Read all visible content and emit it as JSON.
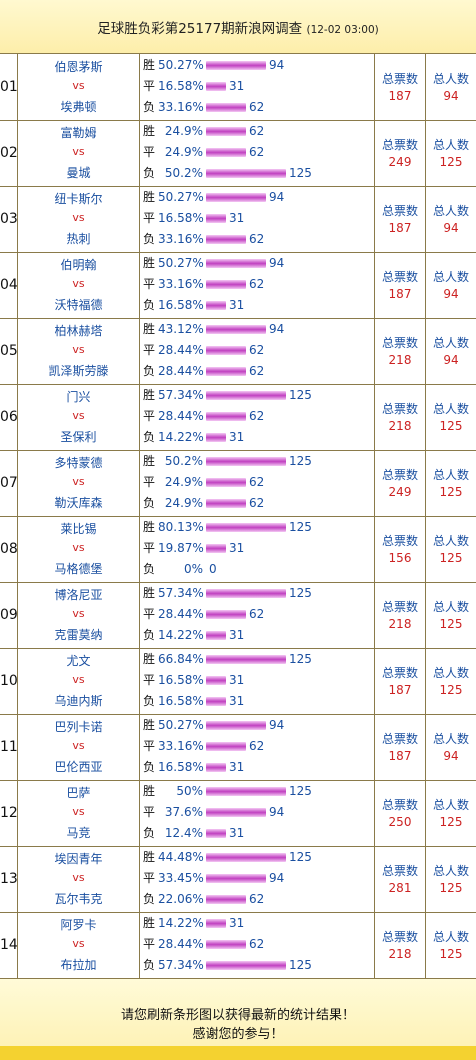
{
  "header": {
    "title": "足球胜负彩第25177期新浪网调查",
    "date": "(12-02 03:00)"
  },
  "labels": {
    "win": "胜",
    "draw": "平",
    "lose": "负",
    "vs": "vs",
    "total_votes": "总票数",
    "total_people": "总人数"
  },
  "matches": [
    {
      "num": "01",
      "home": "伯恩茅斯",
      "away": "埃弗顿",
      "win_pct": "50.27%",
      "win": 94,
      "draw_pct": "16.58%",
      "draw": 31,
      "lose_pct": "33.16%",
      "lose": 62,
      "total_votes": "187",
      "total_people": "94"
    },
    {
      "num": "02",
      "home": "富勒姆",
      "away": "曼城",
      "win_pct": "24.9%",
      "win": 62,
      "draw_pct": "24.9%",
      "draw": 62,
      "lose_pct": "50.2%",
      "lose": 125,
      "total_votes": "249",
      "total_people": "125"
    },
    {
      "num": "03",
      "home": "纽卡斯尔",
      "away": "热刺",
      "win_pct": "50.27%",
      "win": 94,
      "draw_pct": "16.58%",
      "draw": 31,
      "lose_pct": "33.16%",
      "lose": 62,
      "total_votes": "187",
      "total_people": "94"
    },
    {
      "num": "04",
      "home": "伯明翰",
      "away": "沃特福德",
      "win_pct": "50.27%",
      "win": 94,
      "draw_pct": "33.16%",
      "draw": 62,
      "lose_pct": "16.58%",
      "lose": 31,
      "total_votes": "187",
      "total_people": "94"
    },
    {
      "num": "05",
      "home": "柏林赫塔",
      "away": "凯泽斯劳滕",
      "win_pct": "43.12%",
      "win": 94,
      "draw_pct": "28.44%",
      "draw": 62,
      "lose_pct": "28.44%",
      "lose": 62,
      "total_votes": "218",
      "total_people": "94"
    },
    {
      "num": "06",
      "home": "门兴",
      "away": "圣保利",
      "win_pct": "57.34%",
      "win": 125,
      "draw_pct": "28.44%",
      "draw": 62,
      "lose_pct": "14.22%",
      "lose": 31,
      "total_votes": "218",
      "total_people": "125"
    },
    {
      "num": "07",
      "home": "多特蒙德",
      "away": "勒沃库森",
      "win_pct": "50.2%",
      "win": 125,
      "draw_pct": "24.9%",
      "draw": 62,
      "lose_pct": "24.9%",
      "lose": 62,
      "total_votes": "249",
      "total_people": "125"
    },
    {
      "num": "08",
      "home": "莱比锡",
      "away": "马格德堡",
      "win_pct": "80.13%",
      "win": 125,
      "draw_pct": "19.87%",
      "draw": 31,
      "lose_pct": "0%",
      "lose": 0,
      "total_votes": "156",
      "total_people": "125"
    },
    {
      "num": "09",
      "home": "博洛尼亚",
      "away": "克雷莫纳",
      "win_pct": "57.34%",
      "win": 125,
      "draw_pct": "28.44%",
      "draw": 62,
      "lose_pct": "14.22%",
      "lose": 31,
      "total_votes": "218",
      "total_people": "125"
    },
    {
      "num": "10",
      "home": "尤文",
      "away": "乌迪内斯",
      "win_pct": "66.84%",
      "win": 125,
      "draw_pct": "16.58%",
      "draw": 31,
      "lose_pct": "16.58%",
      "lose": 31,
      "total_votes": "187",
      "total_people": "125"
    },
    {
      "num": "11",
      "home": "巴列卡诺",
      "away": "巴伦西亚",
      "win_pct": "50.27%",
      "win": 94,
      "draw_pct": "33.16%",
      "draw": 62,
      "lose_pct": "16.58%",
      "lose": 31,
      "total_votes": "187",
      "total_people": "94"
    },
    {
      "num": "12",
      "home": "巴萨",
      "away": "马竞",
      "win_pct": "50%",
      "win": 125,
      "draw_pct": "37.6%",
      "draw": 94,
      "lose_pct": "12.4%",
      "lose": 31,
      "total_votes": "250",
      "total_people": "125"
    },
    {
      "num": "13",
      "home": "埃因青年",
      "away": "瓦尔韦克",
      "win_pct": "44.48%",
      "win": 125,
      "draw_pct": "33.45%",
      "draw": 94,
      "lose_pct": "22.06%",
      "lose": 62,
      "total_votes": "281",
      "total_people": "125"
    },
    {
      "num": "14",
      "home": "阿罗卡",
      "away": "布拉加",
      "win_pct": "14.22%",
      "win": 31,
      "draw_pct": "28.44%",
      "draw": 62,
      "lose_pct": "57.34%",
      "lose": 125,
      "total_votes": "218",
      "total_people": "125"
    }
  ],
  "footer": {
    "line1": "请您刷新条形图以获得最新的统计结果！",
    "line2": "感谢您的参与！"
  },
  "colors": {
    "header_bg": "#fdeeaa",
    "bar": "#c040c0",
    "team_text": "#1a4fa0",
    "accent_red": "#cc2222",
    "footer_strip": "#f4d230"
  }
}
